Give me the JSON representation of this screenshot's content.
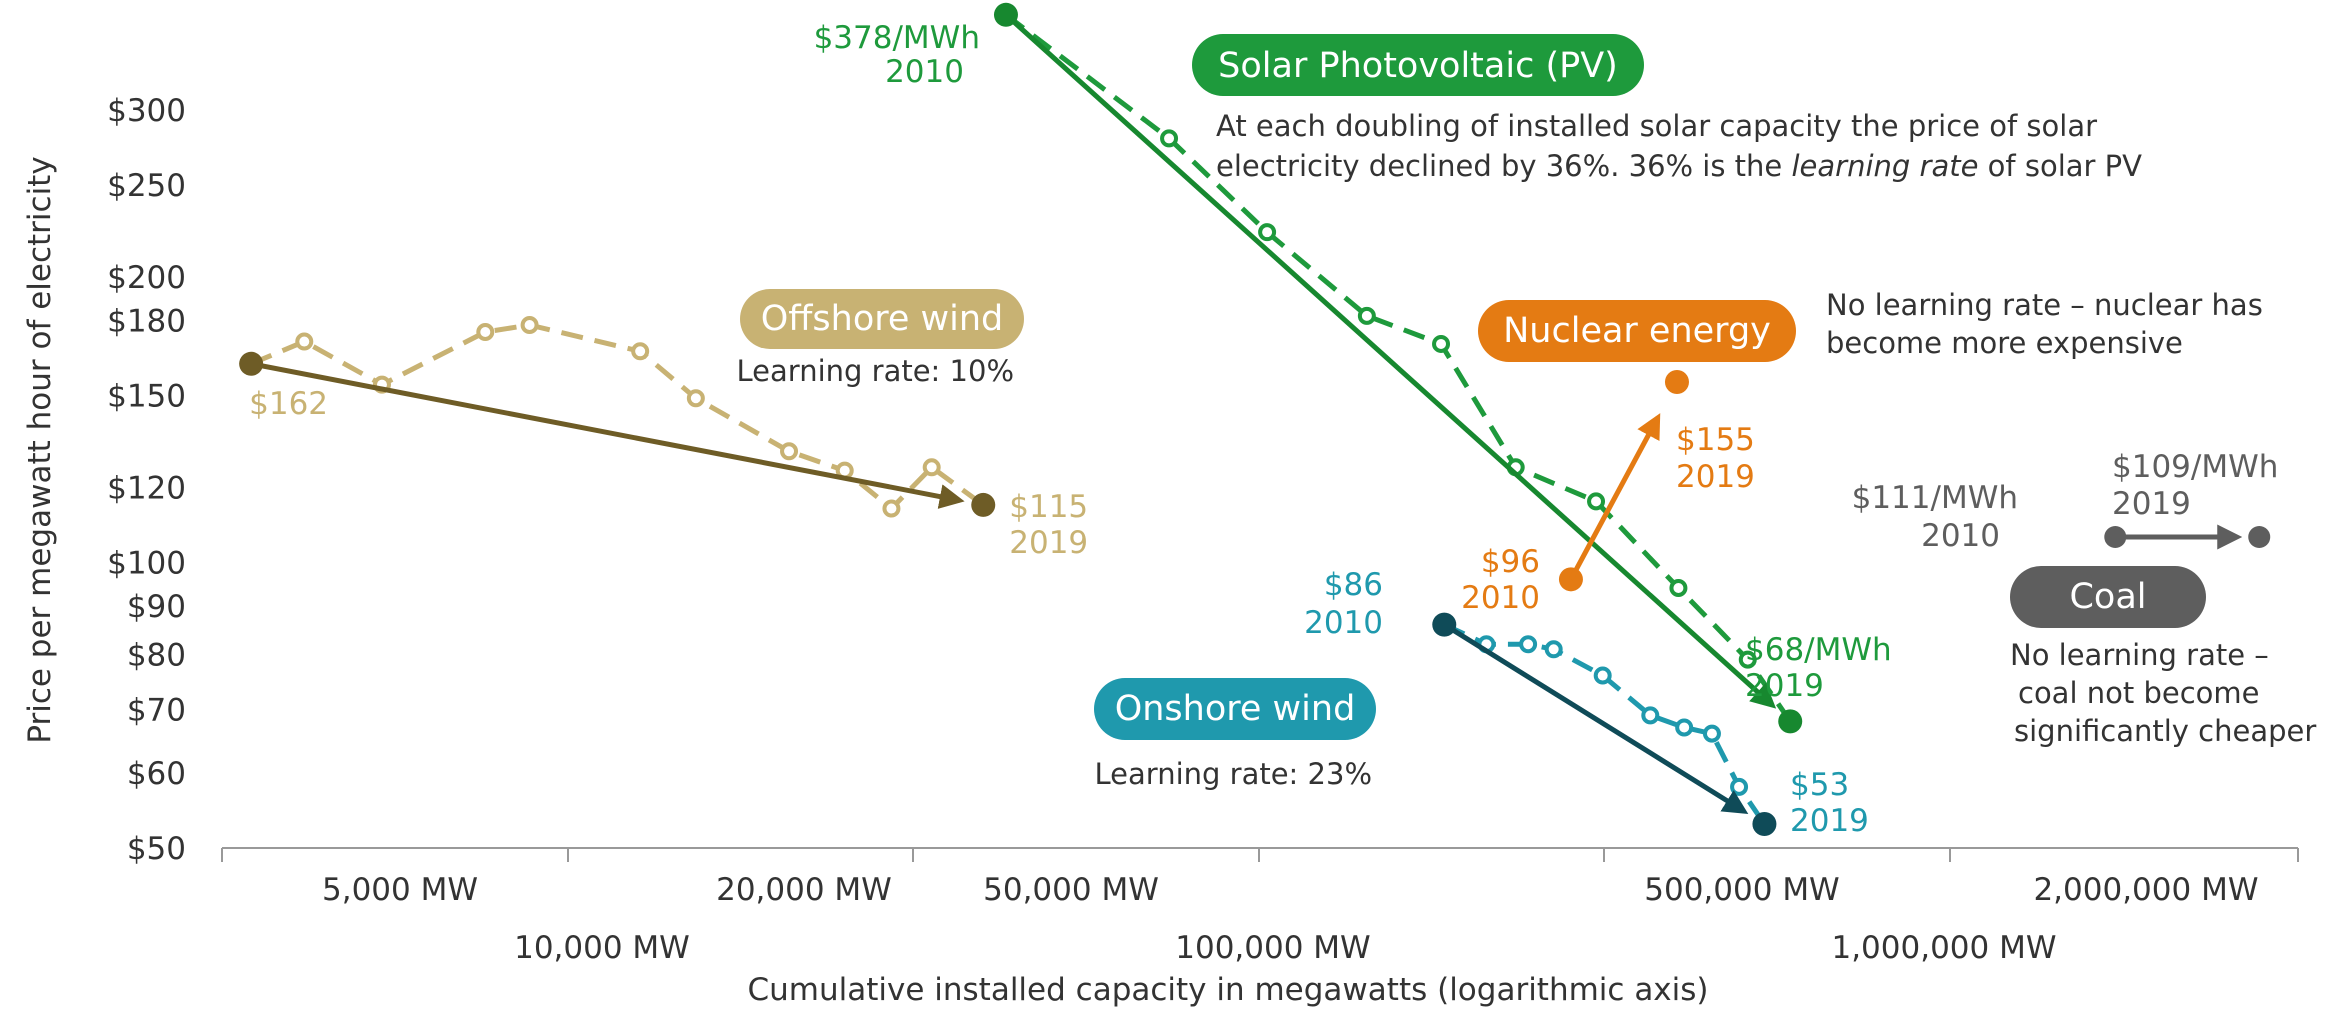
{
  "chart_data": {
    "type": "line",
    "xscale": "log",
    "xlabel": "Cumulative installed capacity in megawatts (logarithmic axis)",
    "ylabel": "Price per megawatt hour of electricity",
    "xlim": [
      2500,
      4000000
    ],
    "ylim": [
      50,
      400
    ],
    "x_ticks": [
      {
        "value": 5000,
        "label": "5,000 MW",
        "row": 1
      },
      {
        "value": 10000,
        "label": "10,000 MW",
        "row": 2
      },
      {
        "value": 20000,
        "label": "20,000 MW",
        "row": 1
      },
      {
        "value": 50000,
        "label": "50,000 MW",
        "row": 1
      },
      {
        "value": 100000,
        "label": "100,000 MW",
        "row": 2
      },
      {
        "value": 500000,
        "label": "500,000 MW",
        "row": 1
      },
      {
        "value": 1000000,
        "label": "1,000,000 MW",
        "row": 2
      },
      {
        "value": 2000000,
        "label": "2,000,000 MW",
        "row": 1
      }
    ],
    "y_ticks": [
      {
        "value": 50,
        "label": "$50"
      },
      {
        "value": 60,
        "label": "$60"
      },
      {
        "value": 70,
        "label": "$70"
      },
      {
        "value": 80,
        "label": "$80"
      },
      {
        "value": 90,
        "label": "$90"
      },
      {
        "value": 100,
        "label": "$100"
      },
      {
        "value": 120,
        "label": "$120"
      },
      {
        "value": 150,
        "label": "$150"
      },
      {
        "value": 180,
        "label": "$180"
      },
      {
        "value": 200,
        "label": "$200"
      },
      {
        "value": 250,
        "label": "$250"
      },
      {
        "value": 300,
        "label": "$300"
      }
    ],
    "series": [
      {
        "name": "Solar Photovoltaic (PV)",
        "color": "#1e9a3c",
        "trend_color": "#17882f",
        "x": [
          40000,
          70000,
          98000,
          138000,
          178000,
          230000,
          303000,
          402000,
          510000,
          590000
        ],
        "y": [
          378,
          280,
          223,
          182,
          170,
          126,
          116,
          94,
          79,
          68
        ],
        "labels": {
          "start": [
            "$378/MWh",
            "2010"
          ],
          "end": [
            "$68/MWh",
            "2019"
          ]
        },
        "note": [
          "At each doubling of installed solar capacity the price of solar",
          "electricity declined by 36%. 36% is the learning rate of solar PV"
        ],
        "note_italic": "learning rate"
      },
      {
        "name": "Offshore wind",
        "color": "#c8b273",
        "trend_color": "#6e5c26",
        "x": [
          3000,
          3600,
          4700,
          6700,
          7800,
          11400,
          13800,
          19000,
          23000,
          27000,
          31000,
          37000
        ],
        "y": [
          162,
          171,
          154,
          175,
          178,
          167,
          149,
          131,
          125,
          114,
          126,
          115
        ],
        "labels": {
          "start": [
            "$162"
          ],
          "end": [
            "$115",
            "2019"
          ]
        },
        "note": [
          "Learning rate: 10%"
        ]
      },
      {
        "name": "Onshore wind",
        "color": "#1f99ad",
        "trend_color": "#0f4b58",
        "x": [
          180000,
          208000,
          240000,
          262000,
          310000,
          365000,
          410000,
          451000,
          495000,
          540000
        ],
        "y": [
          86,
          82,
          82,
          81,
          76,
          69,
          67,
          66,
          58,
          53
        ],
        "labels": {
          "start": [
            "$86",
            "2010"
          ],
          "end": [
            "$53",
            "2019"
          ]
        },
        "note": [
          "Learning rate: 23%"
        ]
      },
      {
        "name": "Nuclear energy",
        "color": "#e47b13",
        "x": [
          278000,
          400000
        ],
        "y": [
          96,
          155
        ],
        "labels": {
          "start": [
            "$96",
            "2010"
          ],
          "end": [
            "$155",
            "2019"
          ]
        },
        "note": [
          "No learning rate – nuclear has",
          "become more expensive"
        ]
      },
      {
        "name": "Coal",
        "color": "#5e5e5e",
        "x": [
          1800000,
          2950000
        ],
        "y": [
          111,
          109
        ],
        "labels": {
          "start": [
            "$111/MWh",
            "2010"
          ],
          "end": [
            "$109/MWh",
            "2019"
          ]
        },
        "note": [
          "No learning rate –",
          "coal not become",
          "significantly cheaper"
        ]
      }
    ]
  }
}
